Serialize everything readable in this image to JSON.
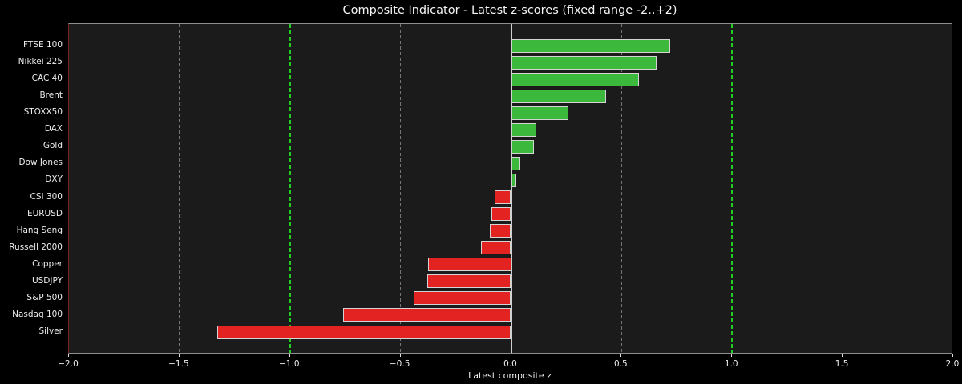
{
  "title": "Composite Indicator - Latest z-scores (fixed range -2..+2)",
  "xlabel": "Latest composite z",
  "chart_data": {
    "type": "bar",
    "orientation": "horizontal",
    "title": "Composite Indicator - Latest z-scores (fixed range -2..+2)",
    "xlabel": "Latest composite z",
    "ylabel": "",
    "xlim": [
      -2.0,
      2.0
    ],
    "categories_top_to_bottom": [
      "FTSE 100",
      "Nikkei 225",
      "CAC 40",
      "Brent",
      "STOXX50",
      "DAX",
      "Gold",
      "Dow Jones",
      "DXY",
      "CSI 300",
      "EURUSD",
      "Hang Seng",
      "Russell 2000",
      "Copper",
      "USDJPY",
      "S&P 500",
      "Nasdaq 100",
      "Silver"
    ],
    "values": [
      0.72,
      0.66,
      0.58,
      0.43,
      0.26,
      0.115,
      0.105,
      0.04,
      0.025,
      -0.075,
      -0.09,
      -0.095,
      -0.135,
      -0.375,
      -0.38,
      -0.44,
      -0.76,
      -1.33
    ],
    "x_ticks": [
      -2.0,
      -1.5,
      -1.0,
      -0.5,
      0.0,
      0.5,
      1.0,
      1.5,
      2.0
    ],
    "x_tick_labels": [
      "−2.0",
      "−1.5",
      "−1.0",
      "−0.5",
      "0.0",
      "0.5",
      "1.0",
      "1.5",
      "2.0"
    ],
    "gray_dashed_gridlines": [
      -1.5,
      -0.5,
      0.5,
      1.5
    ],
    "green_dashed_threshold_lines": [
      -1.0,
      1.0
    ],
    "zero_line": 0.0,
    "legend": null,
    "grid": "vertical-dashed",
    "colors": {
      "figure_background": "#000000",
      "axes_background": "#1b1b1b",
      "positive_bar": "#3cb83c",
      "negative_bar": "#e32222",
      "bar_edge": "#d4d4d4",
      "gray_gridline": "#757575",
      "threshold_line": "#21cd21",
      "zero_line": "#d0d0d0",
      "top_bottom_spine": "#8e8e8e",
      "left_right_spine": "#7c2323",
      "text": "#ededed"
    }
  }
}
